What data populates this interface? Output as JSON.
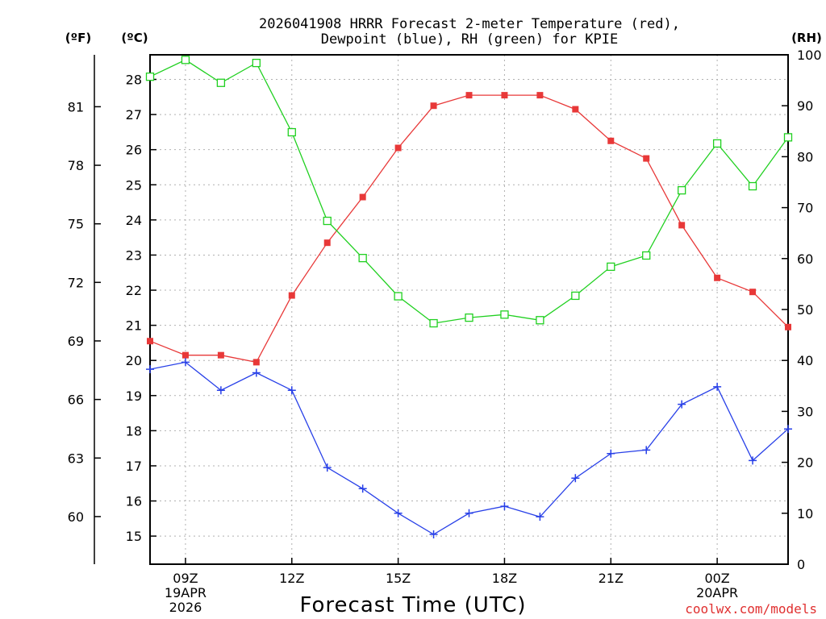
{
  "chart_data": {
    "type": "line",
    "title_line1": "2026041908 HRRR Forecast 2-meter Temperature (red),",
    "title_line2": "Dewpoint (blue), RH (green) for KPIE",
    "axis_units": {
      "fahrenheit": "(ºF)",
      "celsius": "(ºC)",
      "rh": "(RH)"
    },
    "xlabel": "Forecast Time (UTC)",
    "credit": "coolwx.com/models",
    "x": [
      8,
      9,
      10,
      11,
      12,
      13,
      14,
      15,
      16,
      17,
      18,
      19,
      20,
      21,
      22,
      23,
      24,
      25,
      26
    ],
    "xlim": [
      8,
      26
    ],
    "x_ticks": [
      {
        "x": 9,
        "lines": [
          "09Z",
          "19APR",
          "2026"
        ]
      },
      {
        "x": 12,
        "lines": [
          "12Z"
        ]
      },
      {
        "x": 15,
        "lines": [
          "15Z"
        ]
      },
      {
        "x": 18,
        "lines": [
          "18Z"
        ]
      },
      {
        "x": 21,
        "lines": [
          "21Z"
        ]
      },
      {
        "x": 24,
        "lines": [
          "00Z",
          "20APR"
        ]
      }
    ],
    "celsius_axis": {
      "lim": [
        14.2,
        28.7
      ],
      "ticks": [
        15,
        16,
        17,
        18,
        19,
        20,
        21,
        22,
        23,
        24,
        25,
        26,
        27,
        28
      ]
    },
    "fahrenheit_axis": {
      "ticks": [
        60,
        63,
        66,
        69,
        72,
        75,
        78,
        81
      ]
    },
    "rh_axis": {
      "lim": [
        0,
        100
      ],
      "ticks": [
        0,
        10,
        20,
        30,
        40,
        50,
        60,
        70,
        80,
        90,
        100
      ]
    },
    "series": [
      {
        "name": "Temperature",
        "axis": "celsius",
        "color": "#e83838",
        "marker": "filled-square",
        "values": [
          20.55,
          20.15,
          20.15,
          19.95,
          21.85,
          23.35,
          24.65,
          26.05,
          27.25,
          27.55,
          27.55,
          27.55,
          27.15,
          26.25,
          25.75,
          23.85,
          22.35,
          21.95,
          20.95
        ]
      },
      {
        "name": "Dewpoint",
        "axis": "celsius",
        "color": "#2840e8",
        "marker": "plus",
        "values": [
          19.75,
          19.95,
          19.15,
          19.65,
          19.15,
          16.95,
          16.35,
          15.65,
          15.05,
          15.65,
          15.85,
          15.55,
          16.65,
          17.35,
          17.45,
          18.75,
          19.25,
          17.15,
          18.05
        ]
      },
      {
        "name": "RH",
        "axis": "rh",
        "color": "#20d020",
        "marker": "open-square",
        "values": [
          95.7,
          99,
          94.5,
          98.4,
          84.8,
          67.4,
          60.1,
          52.6,
          47.3,
          48.4,
          49,
          47.9,
          52.7,
          58.4,
          60.6,
          73.4,
          82.6,
          74.2,
          83.8
        ]
      }
    ]
  }
}
